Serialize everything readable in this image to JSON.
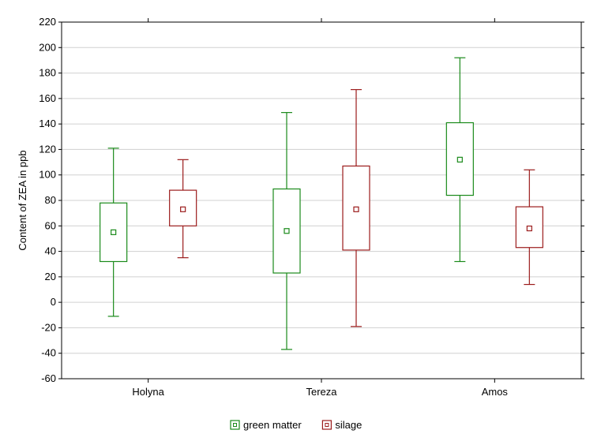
{
  "chart_data": {
    "type": "boxplot",
    "title": "",
    "xlabel": "",
    "ylabel": "Content of ZEA in ppb",
    "ylim": [
      -60,
      220
    ],
    "ytick_step": 20,
    "grid": "horizontal",
    "legend_position": "bottom-center",
    "categories": [
      "Holyna",
      "Tereza",
      "Amos"
    ],
    "series": [
      {
        "name": "green matter",
        "color": "#1a8a1a",
        "boxes": [
          {
            "category": "Holyna",
            "whisker_low": -11,
            "q1": 32,
            "mean": 55,
            "q3": 78,
            "whisker_high": 121
          },
          {
            "category": "Tereza",
            "whisker_low": -37,
            "q1": 23,
            "mean": 56,
            "q3": 89,
            "whisker_high": 149
          },
          {
            "category": "Amos",
            "whisker_low": 32,
            "q1": 84,
            "mean": 112,
            "q3": 141,
            "whisker_high": 192
          }
        ]
      },
      {
        "name": "silage",
        "color": "#9b1c1c",
        "boxes": [
          {
            "category": "Holyna",
            "whisker_low": 35,
            "q1": 60,
            "mean": 73,
            "q3": 88,
            "whisker_high": 112
          },
          {
            "category": "Tereza",
            "whisker_low": -19,
            "q1": 41,
            "mean": 73,
            "q3": 107,
            "whisker_high": 167
          },
          {
            "category": "Amos",
            "whisker_low": 14,
            "q1": 43,
            "mean": 58,
            "q3": 75,
            "whisker_high": 104
          }
        ]
      }
    ]
  }
}
